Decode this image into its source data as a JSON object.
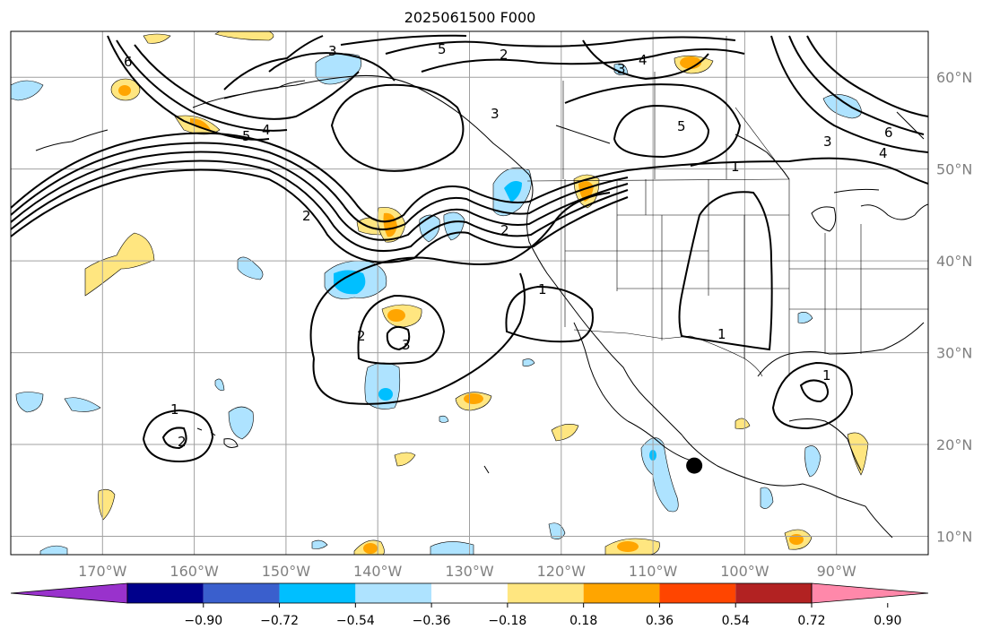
{
  "title": "2025061500 F000",
  "map": {
    "projection": "PlateCarree",
    "lon_range": [
      -180,
      -80
    ],
    "lat_range": [
      8,
      65
    ],
    "lon_ticks": [
      "170°W",
      "160°W",
      "150°W",
      "140°W",
      "130°W",
      "120°W",
      "110°W",
      "100°W",
      "90°W"
    ],
    "lon_tick_values": [
      -170,
      -160,
      -150,
      -140,
      -130,
      -120,
      -110,
      -100,
      -90
    ],
    "lat_ticks": [
      "10°N",
      "20°N",
      "30°N",
      "40°N",
      "50°N",
      "60°N"
    ],
    "lat_tick_values": [
      10,
      20,
      30,
      40,
      50,
      60
    ],
    "grid": true,
    "marker": {
      "lon": -105.5,
      "lat": 17.7,
      "color": "#000000"
    }
  },
  "contour_labels": [
    "1",
    "1",
    "1",
    "1",
    "1",
    "2",
    "2",
    "2",
    "2",
    "2",
    "3",
    "3",
    "3",
    "3",
    "3",
    "4",
    "4",
    "4",
    "5",
    "5",
    "5",
    "6",
    "6"
  ],
  "colorbar": {
    "levels": [
      "−0.90",
      "−0.72",
      "−0.54",
      "−0.36",
      "−0.18",
      "0.18",
      "0.36",
      "0.54",
      "0.72",
      "0.90"
    ],
    "colors": [
      "#9932cc",
      "#00008b",
      "#3a5fcd",
      "#00bfff",
      "#aee3ff",
      "#ffffff",
      "#ffe680",
      "#ffa500",
      "#ff4500",
      "#b22222",
      "#ff88aa"
    ],
    "extend": "both"
  }
}
